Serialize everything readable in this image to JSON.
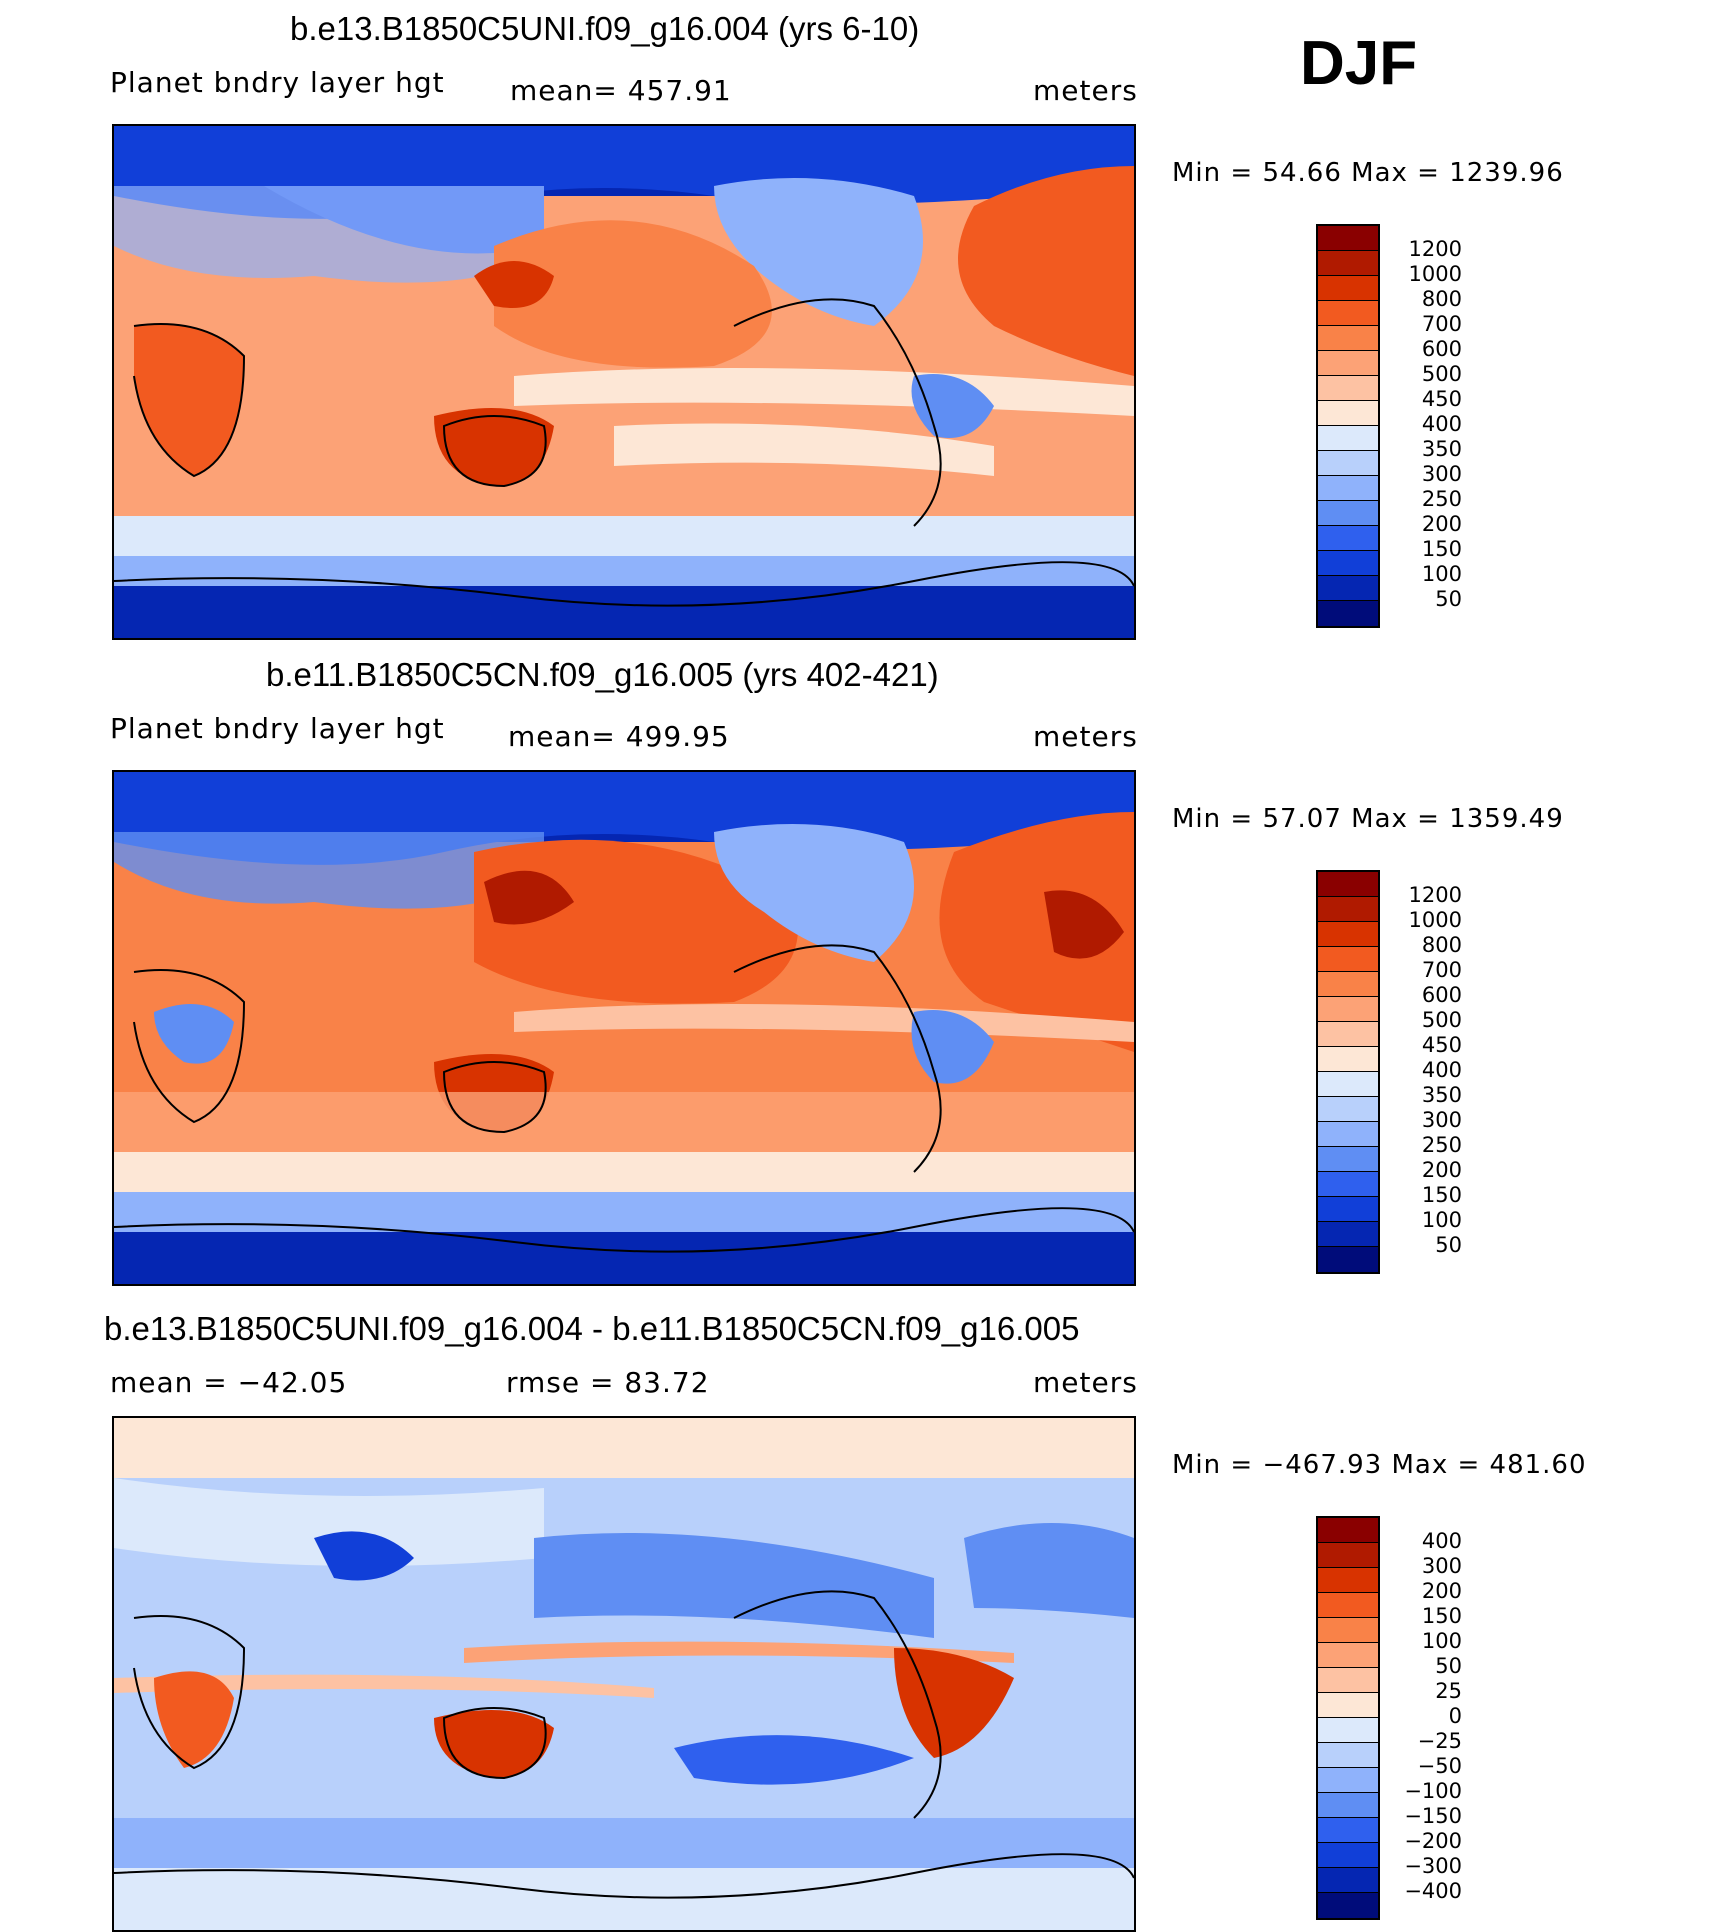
{
  "season": "DJF",
  "panels": [
    {
      "title": "b.e13.B1850C5UNI.f09_g16.004 (yrs 6-10)",
      "left_label": "Planet bndry layer hgt",
      "center_label": "mean=  457.91",
      "units": "meters",
      "minmax": "Min =   54.66 Max =  1239.96",
      "colorbar": {
        "labels": [
          "1200",
          "1000",
          "800",
          "700",
          "600",
          "500",
          "450",
          "400",
          "350",
          "300",
          "250",
          "200",
          "150",
          "100",
          "50"
        ],
        "colors": [
          "#8a0000",
          "#b01a00",
          "#d83300",
          "#f25a20",
          "#f98248",
          "#fca276",
          "#fdc2a3",
          "#fde7d6",
          "#dce9fb",
          "#b8d0fb",
          "#8fb2fb",
          "#5f8ef3",
          "#2f60ee",
          "#113fd8",
          "#0526b2",
          "#000c7a"
        ]
      }
    },
    {
      "title": "b.e11.B1850C5CN.f09_g16.005 (yrs 402-421)",
      "left_label": "Planet bndry layer hgt",
      "center_label": "mean=  499.95",
      "units": "meters",
      "minmax": "Min =   57.07 Max =  1359.49",
      "colorbar": {
        "labels": [
          "1200",
          "1000",
          "800",
          "700",
          "600",
          "500",
          "450",
          "400",
          "350",
          "300",
          "250",
          "200",
          "150",
          "100",
          "50"
        ],
        "colors": [
          "#8a0000",
          "#b01a00",
          "#d83300",
          "#f25a20",
          "#f98248",
          "#fca276",
          "#fdc2a3",
          "#fde7d6",
          "#dce9fb",
          "#b8d0fb",
          "#8fb2fb",
          "#5f8ef3",
          "#2f60ee",
          "#113fd8",
          "#0526b2",
          "#000c7a"
        ]
      }
    },
    {
      "title": "b.e13.B1850C5UNI.f09_g16.004 - b.e11.B1850C5CN.f09_g16.005",
      "left_label": "mean  =  −42.05",
      "center_label": "rmse  =    83.72",
      "units": "meters",
      "minmax": "Min =  −467.93  Max  =  481.60",
      "colorbar": {
        "labels": [
          "400",
          "300",
          "200",
          "150",
          "100",
          "50",
          "25",
          "0",
          "−25",
          "−50",
          "−100",
          "−150",
          "−200",
          "−300",
          "−400"
        ],
        "colors": [
          "#8a0000",
          "#b01a00",
          "#d83300",
          "#f25a20",
          "#f98248",
          "#fca276",
          "#fdc2a3",
          "#fde7d6",
          "#dce9fb",
          "#b8d0fb",
          "#8fb2fb",
          "#5f8ef3",
          "#2f60ee",
          "#113fd8",
          "#0526b2",
          "#000c7a"
        ]
      }
    }
  ]
}
